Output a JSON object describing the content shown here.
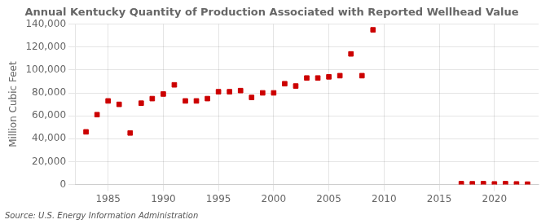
{
  "chart_data": {
    "type": "scatter",
    "title": "Annual Kentucky Quantity of Production Associated with Reported Wellhead Value",
    "ylabel": "Million Cubic Feet",
    "annotations": [
      "Source: U.S. Energy Information Administration"
    ],
    "color": "#cc0000",
    "marker": "square",
    "grid": true,
    "xlim": [
      1982,
      2024
    ],
    "ylim": [
      0,
      140000
    ],
    "xticks": [
      1985,
      1990,
      1995,
      2000,
      2005,
      2010,
      2015,
      2020
    ],
    "yticks": [
      0,
      {
        "value": 20000,
        "label": "20,000"
      },
      {
        "value": 40000,
        "label": "40,000"
      },
      {
        "value": 60000,
        "label": "60,000"
      },
      {
        "value": 80000,
        "label": "80,000"
      },
      {
        "value": 100000,
        "label": "100,000"
      },
      {
        "value": 120000,
        "label": "120,000"
      },
      {
        "value": 140000,
        "label": "140,000"
      }
    ],
    "x": [
      1983,
      1984,
      1985,
      1986,
      1987,
      1988,
      1989,
      1990,
      1991,
      1992,
      1993,
      1994,
      1995,
      1996,
      1997,
      1998,
      1999,
      2000,
      2001,
      2002,
      2003,
      2004,
      2005,
      2006,
      2007,
      2008,
      2009,
      2017,
      2018,
      2019,
      2020,
      2021,
      2022,
      2023
    ],
    "values": [
      46000,
      61000,
      73000,
      70000,
      45000,
      71000,
      75000,
      79000,
      87000,
      73000,
      73000,
      75000,
      81000,
      81000,
      82000,
      76000,
      80000,
      80000,
      88000,
      86000,
      93000,
      93000,
      94000,
      95000,
      114000,
      95000,
      135000,
      800,
      700,
      800,
      600,
      800,
      600,
      400
    ]
  }
}
